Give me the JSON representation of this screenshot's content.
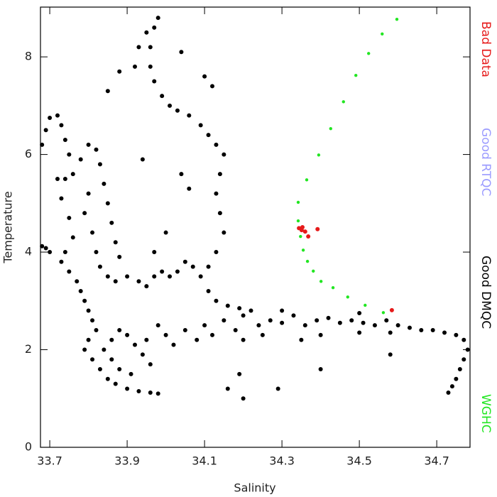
{
  "chart_data": {
    "type": "scatter",
    "x_label": "Salinity",
    "y_label": "Temperature",
    "xlim": [
      33.676,
      34.786
    ],
    "ylim": [
      0,
      9.02
    ],
    "xticks": [
      33.7,
      33.9,
      34.1,
      34.3,
      34.5,
      34.7
    ],
    "yticks": [
      0,
      2,
      4,
      6,
      8
    ],
    "legend": "right",
    "series": [
      {
        "name": "Bad Data",
        "color": "#e61a1a",
        "x": [
          34.344,
          34.351,
          34.36,
          34.368,
          34.392,
          34.353,
          34.584
        ],
        "values": [
          4.49,
          4.45,
          4.42,
          4.32,
          4.47,
          4.51,
          2.81
        ]
      },
      {
        "name": "Good RTQC",
        "color": "#9b9bff",
        "x": [],
        "values": []
      },
      {
        "name": "Good DMQC",
        "color": "#000000",
        "x": [
          33.68,
          33.69,
          33.7,
          33.68,
          33.69,
          33.7,
          33.72,
          33.73,
          33.74,
          33.75,
          33.76,
          33.74,
          33.72,
          33.73,
          33.75,
          33.76,
          33.74,
          33.73,
          33.75,
          33.77,
          33.78,
          33.79,
          33.8,
          33.81,
          33.82,
          33.8,
          33.79,
          33.81,
          33.83,
          33.85,
          33.87,
          33.9,
          33.93,
          33.96,
          33.98,
          33.84,
          33.86,
          33.88,
          33.9,
          33.92,
          33.94,
          33.96,
          33.86,
          33.88,
          33.91,
          33.78,
          33.8,
          33.82,
          33.83,
          33.84,
          33.85,
          33.86,
          33.87,
          33.88,
          33.8,
          33.79,
          33.81,
          33.82,
          33.83,
          33.85,
          33.87,
          33.9,
          33.93,
          33.95,
          33.97,
          33.99,
          34.01,
          34.03,
          34.05,
          34.07,
          34.09,
          34.11,
          34.13,
          34.16,
          34.19,
          34.22,
          33.95,
          33.98,
          34.0,
          34.02,
          34.05,
          34.08,
          34.1,
          34.12,
          34.15,
          34.18,
          34.2,
          34.24,
          34.27,
          34.3,
          34.33,
          34.36,
          34.39,
          34.42,
          34.45,
          34.48,
          34.51,
          34.54,
          34.57,
          34.6,
          34.63,
          34.66,
          34.69,
          34.72,
          34.75,
          34.77,
          34.78,
          34.77,
          34.76,
          34.75,
          34.74,
          34.73,
          34.35,
          34.4,
          34.2,
          34.25,
          34.5,
          34.58,
          34.3,
          34.5,
          33.96,
          33.97,
          33.98,
          33.95,
          33.93,
          33.96,
          33.97,
          33.99,
          34.01,
          34.03,
          34.06,
          34.09,
          34.11,
          34.13,
          34.15,
          34.14,
          34.13,
          34.14,
          34.15,
          34.13,
          34.11,
          33.92,
          33.88,
          33.85,
          34.04,
          34.1,
          34.12,
          34.04,
          34.06,
          33.94,
          34.0,
          33.97,
          34.19,
          34.16,
          34.2,
          34.29,
          34.4,
          34.58
        ],
        "values": [
          4.12,
          4.08,
          4.0,
          6.2,
          6.5,
          6.75,
          6.8,
          6.6,
          6.3,
          6.0,
          5.6,
          5.5,
          5.5,
          5.1,
          4.7,
          4.3,
          4.0,
          3.8,
          3.6,
          3.4,
          3.2,
          3.0,
          2.8,
          2.6,
          2.4,
          2.2,
          2.0,
          1.8,
          1.6,
          1.4,
          1.3,
          1.2,
          1.15,
          1.12,
          1.1,
          2.0,
          2.2,
          2.4,
          2.3,
          2.1,
          1.9,
          1.7,
          1.8,
          1.6,
          1.5,
          5.9,
          6.2,
          6.1,
          5.8,
          5.4,
          5.0,
          4.6,
          4.2,
          3.9,
          5.2,
          4.8,
          4.4,
          4.0,
          3.7,
          3.5,
          3.4,
          3.5,
          3.4,
          3.3,
          3.5,
          3.6,
          3.5,
          3.6,
          3.8,
          3.7,
          3.5,
          3.2,
          3.0,
          2.9,
          2.85,
          2.8,
          2.2,
          2.5,
          2.3,
          2.1,
          2.4,
          2.2,
          2.5,
          2.3,
          2.6,
          2.4,
          2.7,
          2.5,
          2.6,
          2.55,
          2.7,
          2.5,
          2.6,
          2.65,
          2.55,
          2.6,
          2.55,
          2.5,
          2.6,
          2.5,
          2.45,
          2.4,
          2.4,
          2.35,
          2.3,
          2.2,
          2.0,
          1.8,
          1.6,
          1.4,
          1.25,
          1.12,
          2.2,
          2.3,
          2.2,
          2.3,
          2.35,
          2.35,
          2.8,
          2.75,
          8.2,
          8.6,
          8.8,
          8.5,
          8.2,
          7.8,
          7.5,
          7.2,
          7.0,
          6.9,
          6.8,
          6.6,
          6.4,
          6.2,
          6.0,
          5.6,
          5.2,
          4.8,
          4.4,
          4.0,
          3.7,
          7.8,
          7.7,
          7.3,
          8.1,
          7.6,
          7.4,
          5.6,
          5.3,
          5.9,
          4.4,
          4.0,
          1.5,
          1.2,
          1.0,
          1.2,
          1.6,
          1.9
        ]
      },
      {
        "name": "WGHC",
        "color": "#22e622",
        "x": [
          34.597,
          34.559,
          34.524,
          34.491,
          34.459,
          34.426,
          34.395,
          34.364,
          34.342,
          34.342,
          34.348,
          34.355,
          34.366,
          34.381,
          34.401,
          34.432,
          34.47,
          34.515,
          34.562
        ],
        "values": [
          8.77,
          8.47,
          8.07,
          7.62,
          7.08,
          6.53,
          5.99,
          5.48,
          5.02,
          4.64,
          4.32,
          4.04,
          3.81,
          3.61,
          3.4,
          3.27,
          3.08,
          2.91,
          2.76
        ]
      }
    ]
  }
}
